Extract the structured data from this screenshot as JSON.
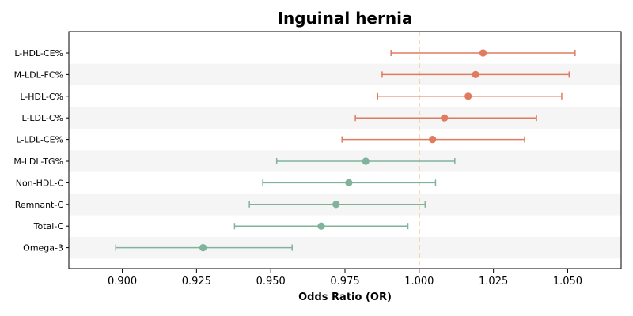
{
  "chart_data": {
    "type": "forest",
    "title": "Inguinal hernia",
    "xlabel": "Odds Ratio (OR)",
    "xlim": [
      0.882,
      1.068
    ],
    "xticks": [
      "0.900",
      "0.925",
      "0.950",
      "0.975",
      "1.000",
      "1.025",
      "1.050"
    ],
    "reference_line": 1.0,
    "colors": {
      "positive": "#e07b5f",
      "negative": "#80b39b",
      "reference": "#f0c27f",
      "band": "#f5f5f5"
    },
    "rows": [
      {
        "label": "L-HDL-CE%",
        "or": 1.0215,
        "lower": 0.9905,
        "upper": 1.0525
      },
      {
        "label": "M-LDL-FC%",
        "or": 1.019,
        "lower": 0.9875,
        "upper": 1.0505
      },
      {
        "label": "L-HDL-C%",
        "or": 1.0165,
        "lower": 0.986,
        "upper": 1.048
      },
      {
        "label": "L-LDL-C%",
        "or": 1.0085,
        "lower": 0.9785,
        "upper": 1.0395
      },
      {
        "label": "L-LDL-CE%",
        "or": 1.0045,
        "lower": 0.974,
        "upper": 1.0355
      },
      {
        "label": "M-LDL-TG%",
        "or": 0.982,
        "lower": 0.952,
        "upper": 1.012
      },
      {
        "label": "Non-HDL-C",
        "or": 0.9763,
        "lower": 0.9473,
        "upper": 1.0055
      },
      {
        "label": "Remnant-C",
        "or": 0.972,
        "lower": 0.9428,
        "upper": 1.002
      },
      {
        "label": "Total-C",
        "or": 0.967,
        "lower": 0.9378,
        "upper": 0.9962
      },
      {
        "label": "Omega-3",
        "or": 0.9272,
        "lower": 0.8978,
        "upper": 0.9572
      }
    ]
  }
}
